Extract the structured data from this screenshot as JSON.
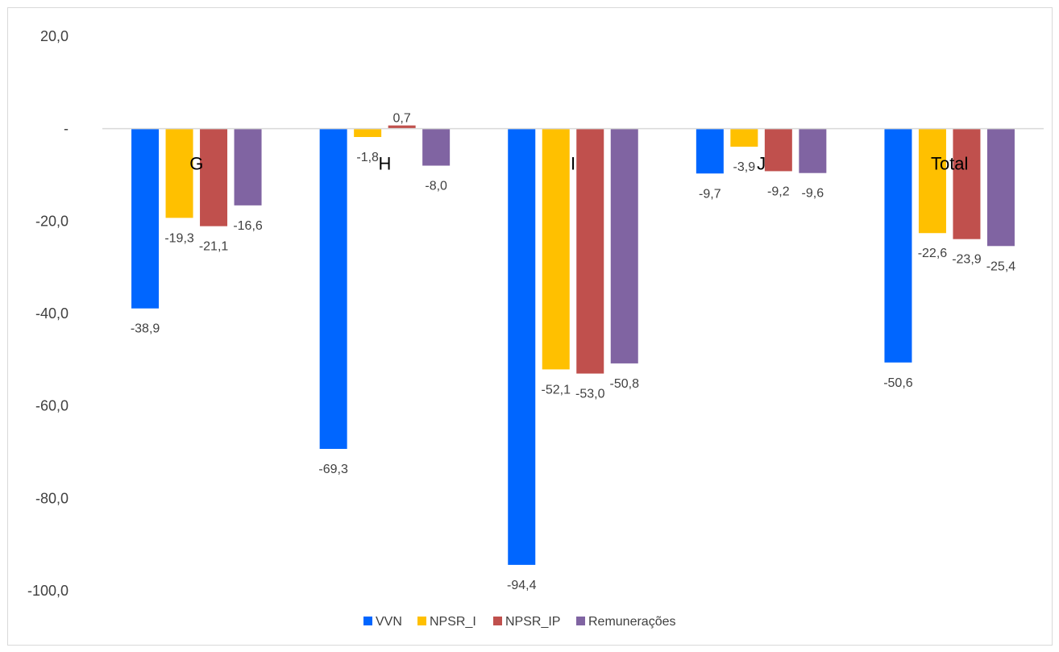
{
  "chart_data": {
    "type": "bar",
    "categories": [
      "G",
      "H",
      "I",
      "J",
      "Total"
    ],
    "series": [
      {
        "name": "VVN",
        "color": "#0066ff",
        "values": [
          -38.9,
          -69.3,
          -94.4,
          -9.7,
          -50.6
        ]
      },
      {
        "name": "NPSR_I",
        "color": "#ffc000",
        "values": [
          -19.3,
          -1.8,
          -52.1,
          -3.9,
          -22.6
        ]
      },
      {
        "name": "NPSR_IP",
        "color": "#c0504d",
        "values": [
          -21.1,
          0.7,
          -53.0,
          -9.2,
          -23.9
        ]
      },
      {
        "name": "Remunerações",
        "color": "#8064a2",
        "values": [
          -16.6,
          -8.0,
          -50.8,
          -9.6,
          -25.4
        ]
      }
    ],
    "data_labels": [
      [
        "-38,9",
        "-69,3",
        "-94,4",
        "-9,7",
        "-50,6"
      ],
      [
        "-19,3",
        "-1,8",
        "-52,1",
        "-3,9",
        "-22,6"
      ],
      [
        "-21,1",
        "0,7",
        "-53,0",
        "-9,2",
        "-23,9"
      ],
      [
        "-16,6",
        "-8,0",
        "-50,8",
        "-9,6",
        "-25,4"
      ]
    ],
    "y_ticks": [
      20,
      0,
      -20,
      -40,
      -60,
      -80,
      -100
    ],
    "y_tick_labels": [
      "20,0",
      "-",
      "-20,0",
      "-40,0",
      "-60,0",
      "-80,0",
      "-100,0"
    ],
    "ylim": [
      -100,
      20
    ],
    "grid": false,
    "legend_position": "bottom",
    "title": "",
    "xlabel": "",
    "ylabel": ""
  }
}
